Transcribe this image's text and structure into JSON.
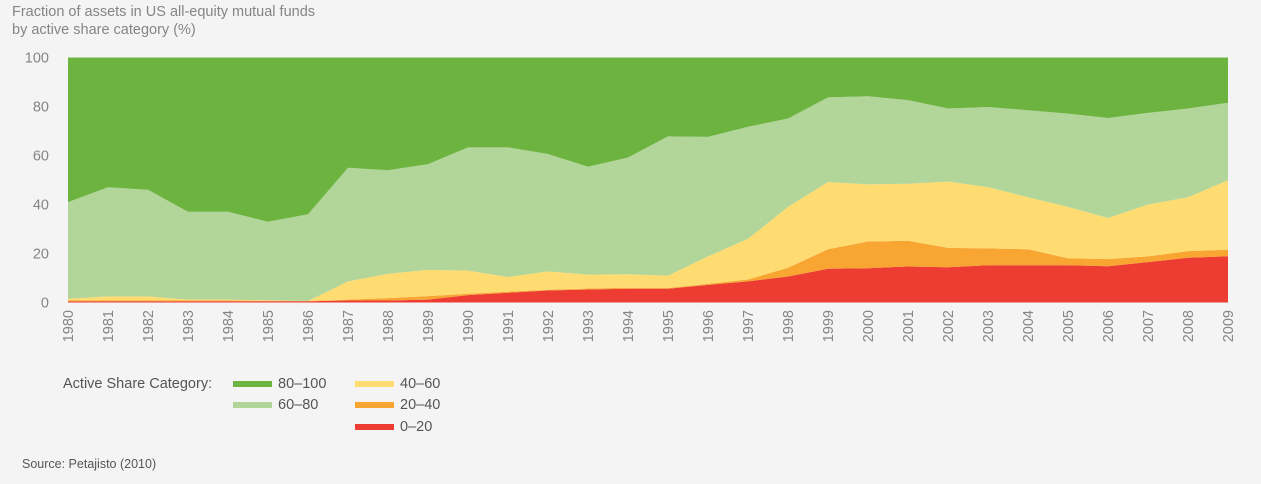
{
  "chart_data": {
    "type": "area",
    "stacked": true,
    "title": "Fraction of assets in US all-equity mutual funds by active share category (%)",
    "title_lines": [
      "Fraction of assets in US all-equity mutual funds",
      "by active share category (%)"
    ],
    "xlabel": "",
    "ylabel": "",
    "ylim": [
      0,
      100
    ],
    "yticks": [
      "0",
      "20",
      "40",
      "60",
      "80",
      "100"
    ],
    "ytick_values": [
      0,
      20,
      40,
      60,
      80,
      100
    ],
    "x": [
      "1980",
      "1981",
      "1982",
      "1983",
      "1984",
      "1985",
      "1986",
      "1987",
      "1988",
      "1989",
      "1990",
      "1991",
      "1992",
      "1993",
      "1994",
      "1995",
      "1996",
      "1997",
      "1998",
      "1999",
      "2000",
      "2001",
      "2002",
      "2003",
      "2004",
      "2005",
      "2006",
      "2007",
      "2008",
      "2009"
    ],
    "grid": false,
    "legend_position": "bottom-left",
    "legend_title": "Active Share Category:",
    "series": [
      {
        "name": "0–20",
        "color": "#ed3d33",
        "values": [
          0.5,
          0.5,
          0.5,
          0.5,
          0.5,
          0.5,
          0.5,
          0.8,
          0.8,
          1.2,
          3.0,
          4.0,
          4.9,
          5.3,
          5.6,
          5.6,
          7.2,
          8.6,
          10.6,
          13.8,
          14.0,
          14.7,
          14.4,
          15.2,
          15.2,
          15.2,
          14.8,
          16.5,
          18.3,
          18.9
        ]
      },
      {
        "name": "20–40",
        "color": "#f8a532",
        "values": [
          0.3,
          0.3,
          0.3,
          0.3,
          0.3,
          0.2,
          0.1,
          0.4,
          1.0,
          1.4,
          0.6,
          0.4,
          0.3,
          0.4,
          0.4,
          0.3,
          0.4,
          0.8,
          3.6,
          7.9,
          10.9,
          10.5,
          7.9,
          6.9,
          6.5,
          2.9,
          2.9,
          2.3,
          2.7,
          2.6
        ]
      },
      {
        "name": "40–60",
        "color": "#ffdc72",
        "values": [
          0.7,
          1.7,
          1.7,
          0.4,
          0.4,
          0.2,
          0.0,
          7.4,
          9.9,
          10.7,
          9.4,
          6.0,
          7.5,
          5.7,
          5.5,
          5.1,
          11.2,
          16.6,
          24.8,
          27.5,
          23.3,
          23.3,
          27.1,
          25.0,
          21.3,
          20.9,
          16.8,
          21.2,
          22.0,
          28.4
        ]
      },
      {
        "name": "60–80",
        "color": "#b2d599",
        "values": [
          39.5,
          44.5,
          43.5,
          35.8,
          35.8,
          32.1,
          35.4,
          46.4,
          42.3,
          43.2,
          50.3,
          52.9,
          47.9,
          44.0,
          47.7,
          56.8,
          48.8,
          45.7,
          36.1,
          34.5,
          36.0,
          34.1,
          29.8,
          32.7,
          35.5,
          38.1,
          40.8,
          37.4,
          36.2,
          31.6
        ]
      },
      {
        "name": "80–100",
        "color": "#6db33f",
        "values": [
          59.0,
          53.0,
          54.0,
          63.0,
          63.0,
          67.0,
          64.0,
          45.0,
          46.0,
          43.5,
          36.7,
          36.7,
          39.4,
          44.6,
          40.8,
          32.2,
          32.4,
          28.3,
          24.9,
          16.3,
          15.8,
          17.4,
          20.8,
          20.2,
          21.5,
          22.9,
          24.7,
          22.6,
          20.8,
          18.5
        ]
      }
    ],
    "legend_order": [
      "80–100",
      "60–80",
      "40–60",
      "20–40",
      "0–20"
    ],
    "source": "Source: Petajisto (2010)"
  }
}
